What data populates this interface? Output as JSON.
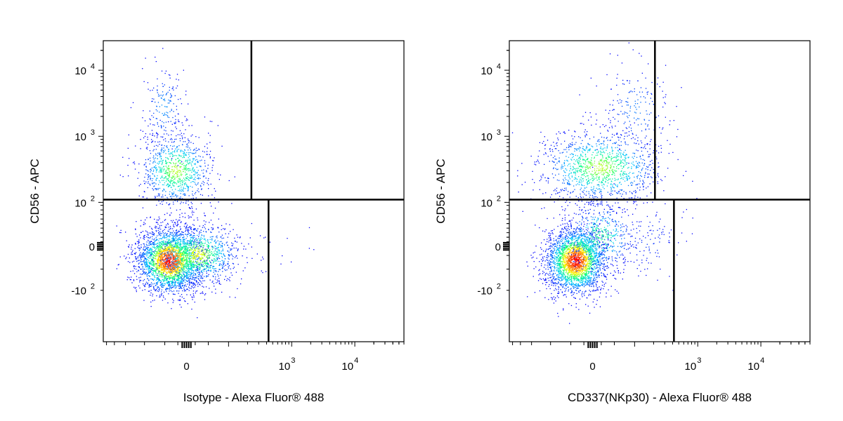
{
  "chart_data": [
    {
      "type": "scatter",
      "subtype": "flow-cytometry-density-dot-plot",
      "title": "",
      "xlabel": "Isotype - Alexa Fluor® 488",
      "ylabel": "CD56 - APC",
      "x_scale": "biexponential",
      "y_scale": "biexponential",
      "x_ticks": [
        {
          "base": "0",
          "exp": ""
        },
        {
          "base": "10",
          "exp": "3"
        },
        {
          "base": "10",
          "exp": "4"
        }
      ],
      "y_ticks": [
        {
          "base": "10",
          "exp": "4"
        },
        {
          "base": "10",
          "exp": "3"
        },
        {
          "base": "10",
          "exp": "2"
        },
        {
          "base": "0",
          "exp": ""
        },
        {
          "base": "-10",
          "exp": "2"
        }
      ],
      "gates": {
        "horizontal_y": 110,
        "upper_vertical_x": 230,
        "lower_vertical_x": 430
      },
      "populations": [
        {
          "x": 0,
          "y": 0,
          "density": "high"
        },
        {
          "x": 100,
          "y": 400,
          "density": "medium"
        },
        {
          "x": 0,
          "y": 3000,
          "density": "low"
        }
      ],
      "colormap": [
        "#0000ff",
        "#00c8ff",
        "#00ff80",
        "#ffff00",
        "#ff8000",
        "#ff0000"
      ]
    },
    {
      "type": "scatter",
      "subtype": "flow-cytometry-density-dot-plot",
      "title": "",
      "xlabel": "CD337(NKp30) - Alexa Fluor® 488",
      "ylabel": "CD56 - APC",
      "x_scale": "biexponential",
      "y_scale": "biexponential",
      "x_ticks": [
        {
          "base": "0",
          "exp": ""
        },
        {
          "base": "10",
          "exp": "3"
        },
        {
          "base": "10",
          "exp": "4"
        }
      ],
      "y_ticks": [
        {
          "base": "10",
          "exp": "4"
        },
        {
          "base": "10",
          "exp": "3"
        },
        {
          "base": "10",
          "exp": "2"
        },
        {
          "base": "0",
          "exp": ""
        },
        {
          "base": "-10",
          "exp": "2"
        }
      ],
      "gates": {
        "horizontal_y": 110,
        "upper_vertical_x": 210,
        "lower_vertical_x": 420
      },
      "populations": [
        {
          "x": 0,
          "y": 0,
          "density": "high"
        },
        {
          "x": 200,
          "y": 400,
          "density": "medium"
        },
        {
          "x": 300,
          "y": 3000,
          "density": "low"
        }
      ],
      "colormap": [
        "#0000ff",
        "#00c8ff",
        "#00ff80",
        "#ffff00",
        "#ff8000",
        "#ff0000"
      ]
    }
  ]
}
